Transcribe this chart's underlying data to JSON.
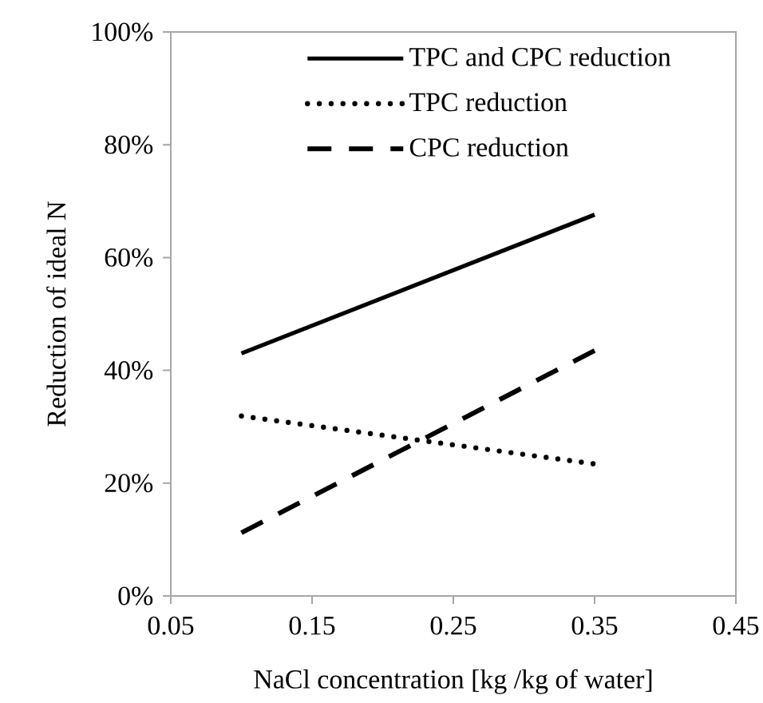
{
  "chart_data": {
    "type": "line",
    "xlabel": "NaCl concentration  [kg /kg of water]",
    "ylabel": "Reduction of ideal N",
    "x": [
      0.1,
      0.35
    ],
    "series": [
      {
        "name": "TPC and CPC reduction",
        "color": "#000000",
        "line_style": "solid",
        "values": [
          43,
          67.6
        ]
      },
      {
        "name": "TPC reduction",
        "color": "#000000",
        "line_style": "dotted",
        "values": [
          31.9,
          23.4
        ]
      },
      {
        "name": "CPC reduction",
        "color": "#000000",
        "line_style": "dashed",
        "values": [
          11.2,
          43.5
        ]
      }
    ],
    "xlim": [
      0.05,
      0.45
    ],
    "xticks": [
      0.05,
      0.15,
      0.25,
      0.35,
      0.45
    ],
    "ylim": [
      0,
      100
    ],
    "yticks": [
      {
        "value": 0,
        "label": "0%"
      },
      {
        "value": 20,
        "label": "20%"
      },
      {
        "value": 40,
        "label": "40%"
      },
      {
        "value": 60,
        "label": "60%"
      },
      {
        "value": 80,
        "label": "80%"
      },
      {
        "value": 100,
        "label": "100%"
      }
    ],
    "legend": "top right",
    "grid": false
  }
}
